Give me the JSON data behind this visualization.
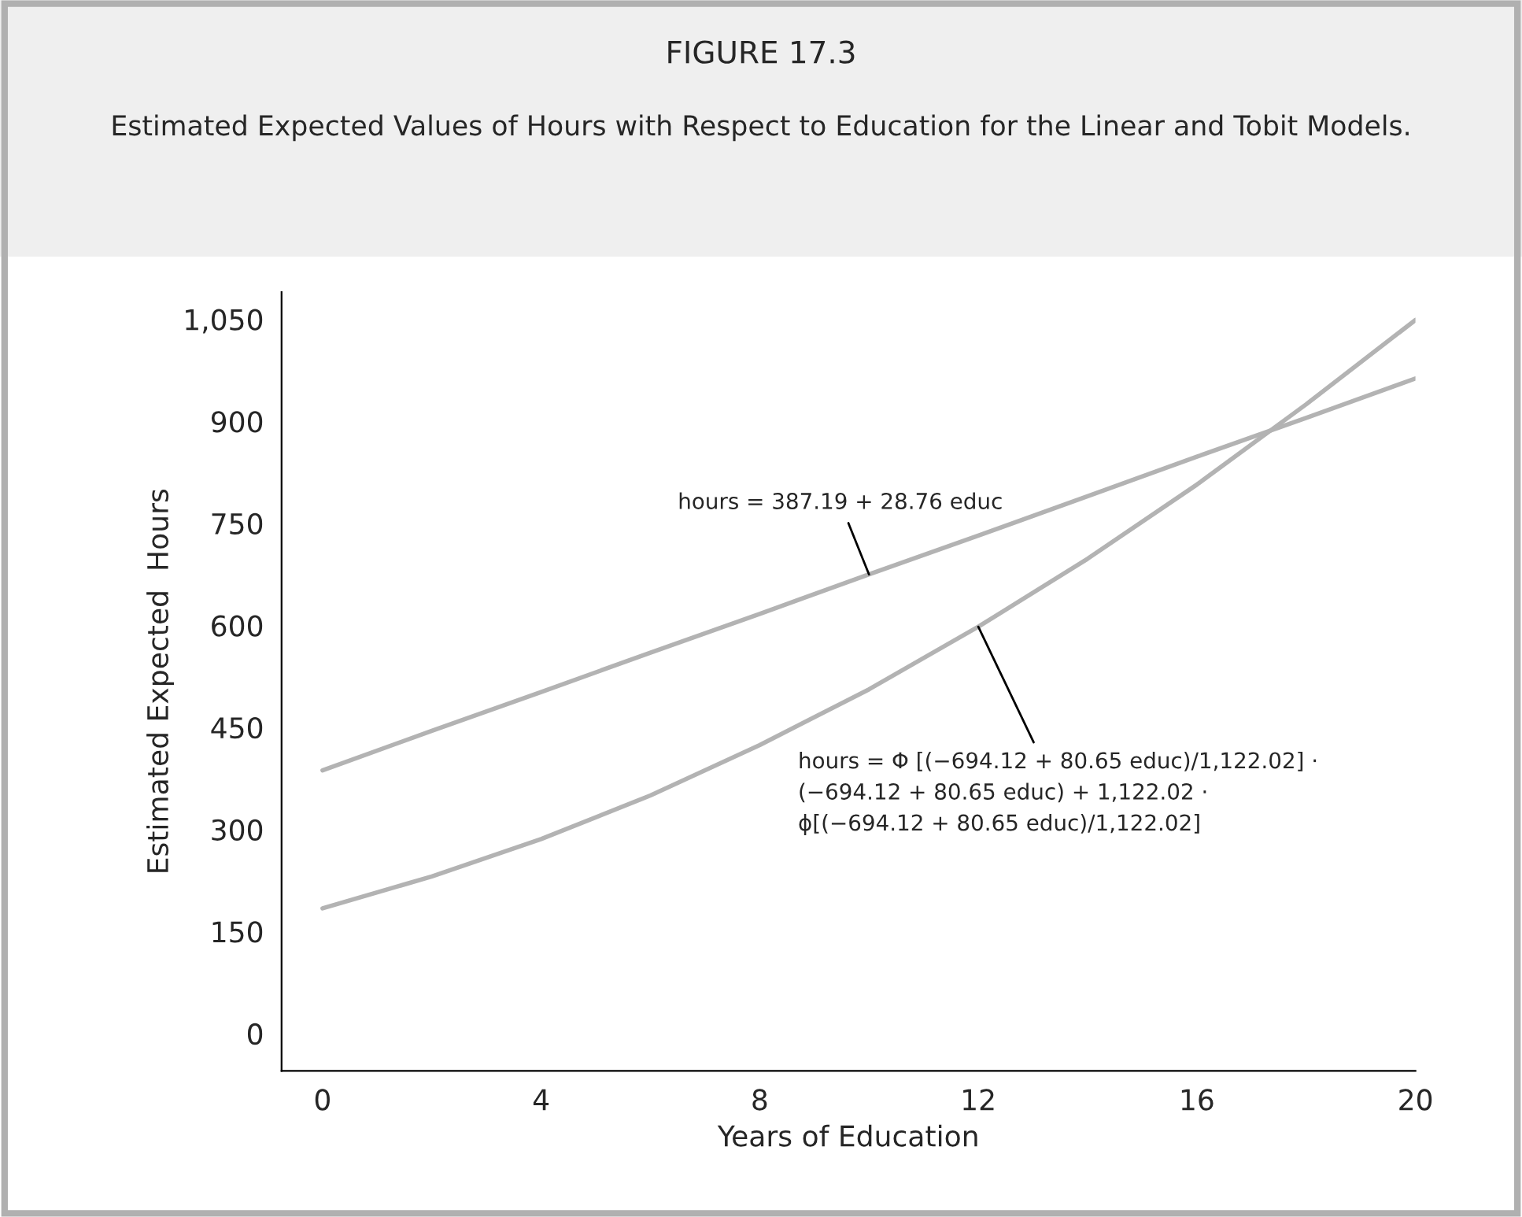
{
  "chart_data": {
    "type": "line",
    "title": "FIGURE 17.3",
    "subtitle": "Estimated Expected Values of Hours with Respect to Education for the Linear and Tobit Models.",
    "xlabel": "Years of Education",
    "ylabel": "Estimated Expected  Hours",
    "x": [
      0,
      2,
      4,
      6,
      8,
      10,
      12,
      14,
      16,
      18,
      20
    ],
    "series": [
      {
        "color": "#b3b3b3",
        "values": [
          387,
          445,
          502,
          560,
          617,
          675,
          732,
          790,
          848,
          905,
          963
        ]
      },
      {
        "color": "#b3b3b3",
        "values": [
          184,
          231,
          286,
          350,
          424,
          506,
          598,
          698,
          807,
          925,
          1049
        ]
      }
    ],
    "xlim": [
      -0.75,
      20
    ],
    "ylim": [
      -55,
      1090
    ],
    "xticks": [
      0,
      4,
      8,
      12,
      16,
      20
    ],
    "yticks": [
      0,
      150,
      300,
      450,
      600,
      750,
      900,
      {
        "value": 1050,
        "label": "1,050"
      }
    ],
    "grid": false,
    "legend": false,
    "marker": "none",
    "line_style": "solid",
    "annotations": [
      {
        "text": "hours = 387.19 + 28.76 educ",
        "x": 10,
        "y": 675
      },
      {
        "text": "hours = Φ [(−694.12 + 80.65 educ)/1,122.02] ·\n(−694.12 + 80.65 educ) + 1,122.02 ·\nϕ[(−694.12 + 80.65 educ)/1,122.02]",
        "x": 12,
        "y": 598
      }
    ]
  }
}
